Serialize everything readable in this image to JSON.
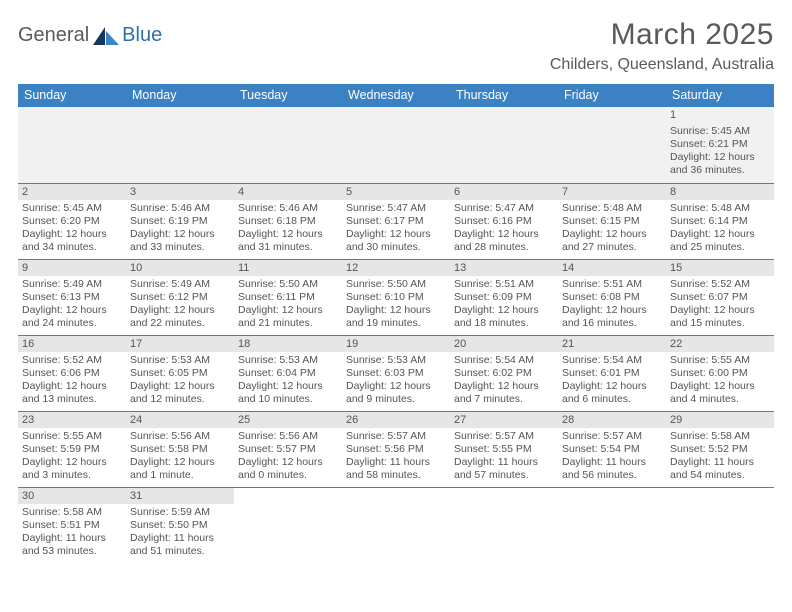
{
  "brand": {
    "part1": "General",
    "part2": "Blue"
  },
  "title": "March 2025",
  "location": "Childers, Queensland, Australia",
  "colors": {
    "header_bg": "#3a82c4",
    "header_text": "#ffffff",
    "row_divider": "#3a82c4",
    "daynum_bg": "#e6e6e6",
    "blank_bg": "#f1f1f1",
    "text": "#555555",
    "brand_blue": "#2f6fb0"
  },
  "typography": {
    "title_fontsize": 30,
    "location_fontsize": 16,
    "header_fontsize": 12.5,
    "daynum_fontsize": 11,
    "cell_fontsize": 10.5
  },
  "day_headers": [
    "Sunday",
    "Monday",
    "Tuesday",
    "Wednesday",
    "Thursday",
    "Friday",
    "Saturday"
  ],
  "weeks": [
    [
      null,
      null,
      null,
      null,
      null,
      null,
      {
        "n": "1",
        "sr": "Sunrise: 5:45 AM",
        "ss": "Sunset: 6:21 PM",
        "d1": "Daylight: 12 hours",
        "d2": "and 36 minutes."
      }
    ],
    [
      {
        "n": "2",
        "sr": "Sunrise: 5:45 AM",
        "ss": "Sunset: 6:20 PM",
        "d1": "Daylight: 12 hours",
        "d2": "and 34 minutes."
      },
      {
        "n": "3",
        "sr": "Sunrise: 5:46 AM",
        "ss": "Sunset: 6:19 PM",
        "d1": "Daylight: 12 hours",
        "d2": "and 33 minutes."
      },
      {
        "n": "4",
        "sr": "Sunrise: 5:46 AM",
        "ss": "Sunset: 6:18 PM",
        "d1": "Daylight: 12 hours",
        "d2": "and 31 minutes."
      },
      {
        "n": "5",
        "sr": "Sunrise: 5:47 AM",
        "ss": "Sunset: 6:17 PM",
        "d1": "Daylight: 12 hours",
        "d2": "and 30 minutes."
      },
      {
        "n": "6",
        "sr": "Sunrise: 5:47 AM",
        "ss": "Sunset: 6:16 PM",
        "d1": "Daylight: 12 hours",
        "d2": "and 28 minutes."
      },
      {
        "n": "7",
        "sr": "Sunrise: 5:48 AM",
        "ss": "Sunset: 6:15 PM",
        "d1": "Daylight: 12 hours",
        "d2": "and 27 minutes."
      },
      {
        "n": "8",
        "sr": "Sunrise: 5:48 AM",
        "ss": "Sunset: 6:14 PM",
        "d1": "Daylight: 12 hours",
        "d2": "and 25 minutes."
      }
    ],
    [
      {
        "n": "9",
        "sr": "Sunrise: 5:49 AM",
        "ss": "Sunset: 6:13 PM",
        "d1": "Daylight: 12 hours",
        "d2": "and 24 minutes."
      },
      {
        "n": "10",
        "sr": "Sunrise: 5:49 AM",
        "ss": "Sunset: 6:12 PM",
        "d1": "Daylight: 12 hours",
        "d2": "and 22 minutes."
      },
      {
        "n": "11",
        "sr": "Sunrise: 5:50 AM",
        "ss": "Sunset: 6:11 PM",
        "d1": "Daylight: 12 hours",
        "d2": "and 21 minutes."
      },
      {
        "n": "12",
        "sr": "Sunrise: 5:50 AM",
        "ss": "Sunset: 6:10 PM",
        "d1": "Daylight: 12 hours",
        "d2": "and 19 minutes."
      },
      {
        "n": "13",
        "sr": "Sunrise: 5:51 AM",
        "ss": "Sunset: 6:09 PM",
        "d1": "Daylight: 12 hours",
        "d2": "and 18 minutes."
      },
      {
        "n": "14",
        "sr": "Sunrise: 5:51 AM",
        "ss": "Sunset: 6:08 PM",
        "d1": "Daylight: 12 hours",
        "d2": "and 16 minutes."
      },
      {
        "n": "15",
        "sr": "Sunrise: 5:52 AM",
        "ss": "Sunset: 6:07 PM",
        "d1": "Daylight: 12 hours",
        "d2": "and 15 minutes."
      }
    ],
    [
      {
        "n": "16",
        "sr": "Sunrise: 5:52 AM",
        "ss": "Sunset: 6:06 PM",
        "d1": "Daylight: 12 hours",
        "d2": "and 13 minutes."
      },
      {
        "n": "17",
        "sr": "Sunrise: 5:53 AM",
        "ss": "Sunset: 6:05 PM",
        "d1": "Daylight: 12 hours",
        "d2": "and 12 minutes."
      },
      {
        "n": "18",
        "sr": "Sunrise: 5:53 AM",
        "ss": "Sunset: 6:04 PM",
        "d1": "Daylight: 12 hours",
        "d2": "and 10 minutes."
      },
      {
        "n": "19",
        "sr": "Sunrise: 5:53 AM",
        "ss": "Sunset: 6:03 PM",
        "d1": "Daylight: 12 hours",
        "d2": "and 9 minutes."
      },
      {
        "n": "20",
        "sr": "Sunrise: 5:54 AM",
        "ss": "Sunset: 6:02 PM",
        "d1": "Daylight: 12 hours",
        "d2": "and 7 minutes."
      },
      {
        "n": "21",
        "sr": "Sunrise: 5:54 AM",
        "ss": "Sunset: 6:01 PM",
        "d1": "Daylight: 12 hours",
        "d2": "and 6 minutes."
      },
      {
        "n": "22",
        "sr": "Sunrise: 5:55 AM",
        "ss": "Sunset: 6:00 PM",
        "d1": "Daylight: 12 hours",
        "d2": "and 4 minutes."
      }
    ],
    [
      {
        "n": "23",
        "sr": "Sunrise: 5:55 AM",
        "ss": "Sunset: 5:59 PM",
        "d1": "Daylight: 12 hours",
        "d2": "and 3 minutes."
      },
      {
        "n": "24",
        "sr": "Sunrise: 5:56 AM",
        "ss": "Sunset: 5:58 PM",
        "d1": "Daylight: 12 hours",
        "d2": "and 1 minute."
      },
      {
        "n": "25",
        "sr": "Sunrise: 5:56 AM",
        "ss": "Sunset: 5:57 PM",
        "d1": "Daylight: 12 hours",
        "d2": "and 0 minutes."
      },
      {
        "n": "26",
        "sr": "Sunrise: 5:57 AM",
        "ss": "Sunset: 5:56 PM",
        "d1": "Daylight: 11 hours",
        "d2": "and 58 minutes."
      },
      {
        "n": "27",
        "sr": "Sunrise: 5:57 AM",
        "ss": "Sunset: 5:55 PM",
        "d1": "Daylight: 11 hours",
        "d2": "and 57 minutes."
      },
      {
        "n": "28",
        "sr": "Sunrise: 5:57 AM",
        "ss": "Sunset: 5:54 PM",
        "d1": "Daylight: 11 hours",
        "d2": "and 56 minutes."
      },
      {
        "n": "29",
        "sr": "Sunrise: 5:58 AM",
        "ss": "Sunset: 5:52 PM",
        "d1": "Daylight: 11 hours",
        "d2": "and 54 minutes."
      }
    ],
    [
      {
        "n": "30",
        "sr": "Sunrise: 5:58 AM",
        "ss": "Sunset: 5:51 PM",
        "d1": "Daylight: 11 hours",
        "d2": "and 53 minutes."
      },
      {
        "n": "31",
        "sr": "Sunrise: 5:59 AM",
        "ss": "Sunset: 5:50 PM",
        "d1": "Daylight: 11 hours",
        "d2": "and 51 minutes."
      },
      null,
      null,
      null,
      null,
      null
    ]
  ]
}
